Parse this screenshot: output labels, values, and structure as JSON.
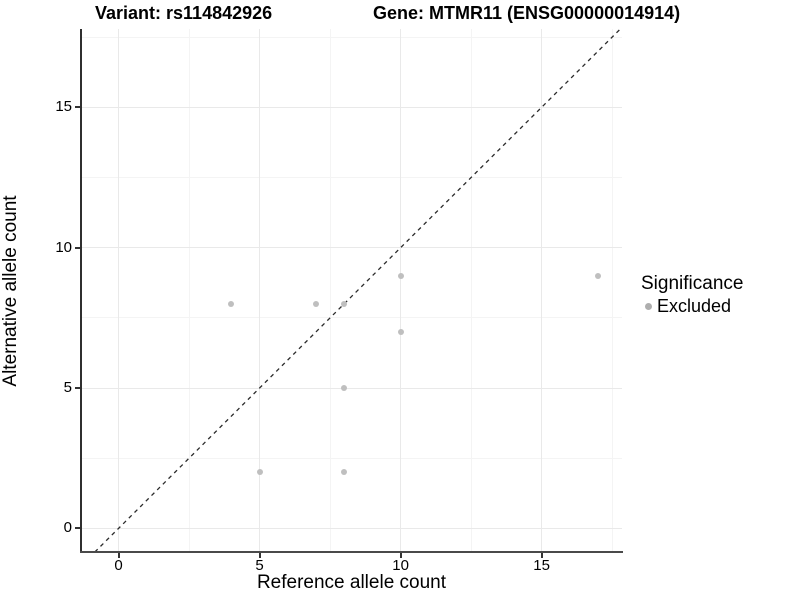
{
  "figure": {
    "title_variant": "Variant: rs114842926",
    "title_gene": "Gene: MTMR11 (ENSG00000014914)"
  },
  "chart_data": {
    "type": "scatter",
    "title": "Variant: rs114842926   Gene: MTMR11 (ENSG00000014914)",
    "xlabel": "Reference allele count",
    "ylabel": "Alternative allele count",
    "x_ticks": [
      0,
      5,
      10,
      15
    ],
    "y_ticks": [
      0,
      5,
      10,
      15
    ],
    "x_minor_ticks": [
      2.5,
      7.5,
      12.5,
      17.5
    ],
    "y_minor_ticks": [
      2.5,
      7.5,
      12.5,
      17.5
    ],
    "x_range": [
      -1.33,
      17.85
    ],
    "y_range": [
      -0.84,
      17.79
    ],
    "grid": true,
    "series": [
      {
        "name": "Excluded",
        "color": "#bfbfbf",
        "points": [
          {
            "x": 4,
            "y": 8
          },
          {
            "x": 7,
            "y": 8
          },
          {
            "x": 8,
            "y": 8
          },
          {
            "x": 10,
            "y": 9
          },
          {
            "x": 10,
            "y": 7
          },
          {
            "x": 8,
            "y": 5
          },
          {
            "x": 5,
            "y": 2
          },
          {
            "x": 8,
            "y": 2
          },
          {
            "x": 17,
            "y": 9
          }
        ]
      }
    ],
    "reference_line": {
      "type": "identity",
      "equation": "y = x",
      "style": "dashed",
      "color": "#2b2b2b"
    },
    "legend": {
      "title": "Significance",
      "position": "right",
      "items": [
        {
          "label": "Excluded",
          "color": "#aeaeae"
        }
      ]
    }
  },
  "colors": {
    "point": "#bfbfbf",
    "grid_major": "#e9e9e9",
    "grid_minor": "#f4f4f4",
    "axis_line": "#3a3a3a",
    "dashed_line": "#2b2b2b",
    "background": "#ffffff"
  }
}
